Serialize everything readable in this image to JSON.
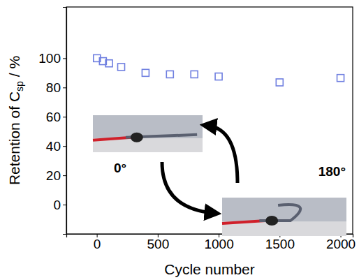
{
  "chart_data": {
    "type": "scatter",
    "x_label": "Cycle number",
    "y_label": [
      {
        "text": "Retention of C"
      },
      {
        "text": "sp",
        "sub": true
      },
      {
        "text": " / %"
      }
    ],
    "x": [
      1,
      50,
      100,
      200,
      400,
      600,
      800,
      1000,
      1500,
      2000
    ],
    "values": [
      100,
      98,
      96.5,
      94,
      90,
      89,
      89,
      87.5,
      83.5,
      86.5
    ],
    "color": "#6f7fe0",
    "marker": "square",
    "xlim": [
      -250,
      2100
    ],
    "xticks": [
      0,
      500,
      1000,
      1500,
      2000
    ],
    "ylim": [
      -20,
      135
    ],
    "yticks": [
      0,
      20,
      40,
      60,
      80,
      100
    ],
    "grid": false,
    "annotations": [
      {
        "text": "0°"
      },
      {
        "text": "180°"
      }
    ]
  }
}
